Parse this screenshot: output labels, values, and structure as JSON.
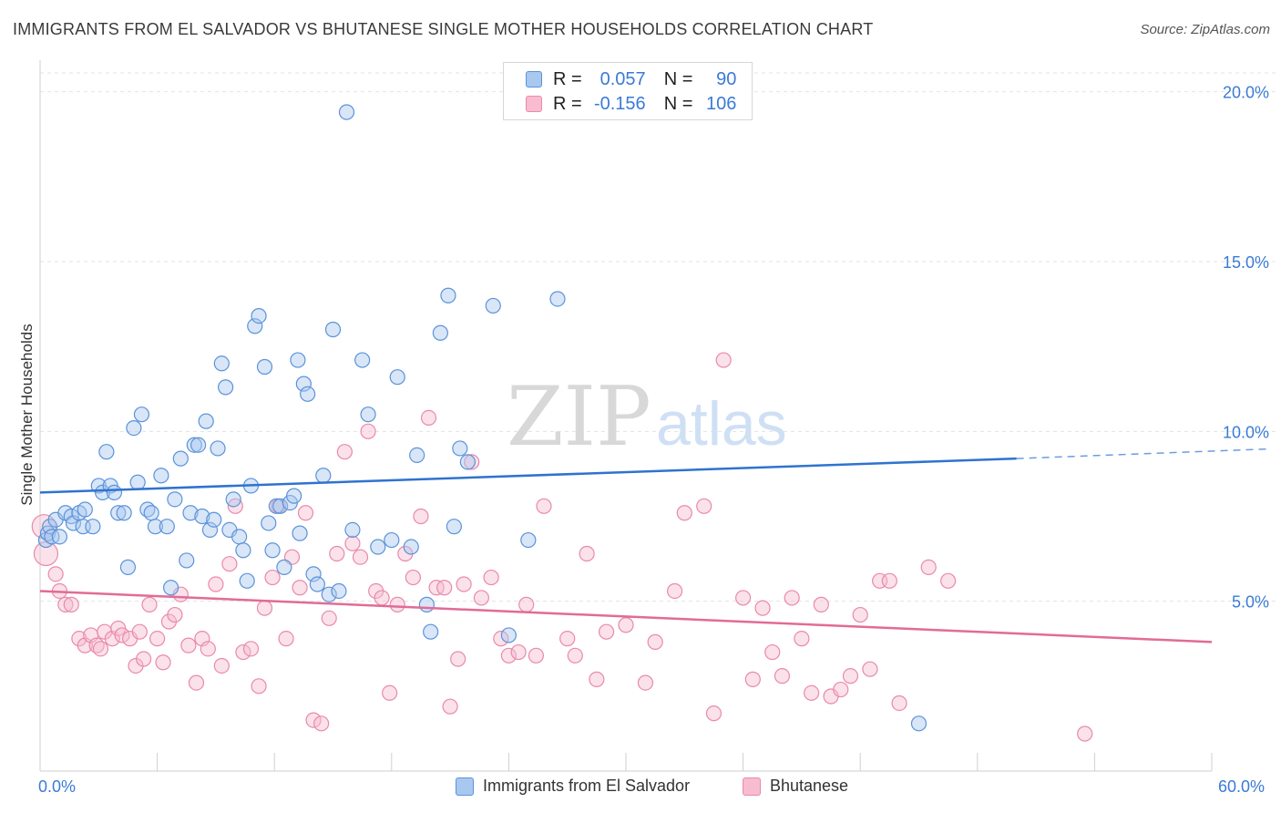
{
  "header": {
    "title": "IMMIGRANTS FROM EL SALVADOR VS BHUTANESE SINGLE MOTHER HOUSEHOLDS CORRELATION CHART",
    "source": "Source: ZipAtlas.com"
  },
  "legend_box": {
    "rows": [
      {
        "r_label": "R =",
        "r_value": "0.057",
        "n_label": "N =",
        "n_value": "90"
      },
      {
        "r_label": "R =",
        "r_value": "-0.156",
        "n_label": "N =",
        "n_value": "106"
      }
    ]
  },
  "bottom_legend": {
    "series1": "Immigrants from El Salvador",
    "series2": "Bhutanese"
  },
  "watermark": {
    "zip": "ZIP",
    "atlas": "atlas"
  },
  "colors": {
    "blue_fill": "#a9c8ef",
    "blue_stroke": "#5b93d9",
    "blue_line": "#2f73cf",
    "pink_fill": "#f7bcd0",
    "pink_stroke": "#e98aa9",
    "pink_line": "#e26b97",
    "tick_text": "#3a7bd5"
  },
  "chart_data": {
    "type": "scatter",
    "title": "IMMIGRANTS FROM EL SALVADOR VS BHUTANESE SINGLE MOTHER HOUSEHOLDS CORRELATION CHART",
    "xlabel": "",
    "ylabel": "Single Mother Households",
    "xlim": [
      0,
      60
    ],
    "ylim": [
      0,
      20.5
    ],
    "x_tick_labels": [
      "0.0%",
      "60.0%"
    ],
    "y_ticks": [
      5,
      10,
      15,
      20
    ],
    "y_tick_labels": [
      "5.0%",
      "10.0%",
      "15.0%",
      "20.0%"
    ],
    "grid": "horizontal dashed",
    "legend_position": "top-center",
    "series": [
      {
        "name": "Immigrants from El Salvador",
        "color": "#5b93d9",
        "trend": {
          "x": [
            0,
            50,
            60
          ],
          "y": [
            8.2,
            9.2,
            9.4
          ],
          "dashed_from_x": 50
        },
        "points": [
          [
            0.3,
            6.8
          ],
          [
            0.4,
            7.0
          ],
          [
            0.5,
            7.2
          ],
          [
            0.6,
            6.9
          ],
          [
            0.8,
            7.4
          ],
          [
            1.0,
            6.9
          ],
          [
            1.3,
            7.6
          ],
          [
            1.6,
            7.5
          ],
          [
            1.7,
            7.3
          ],
          [
            2.0,
            7.6
          ],
          [
            2.2,
            7.2
          ],
          [
            2.3,
            7.7
          ],
          [
            2.7,
            7.2
          ],
          [
            3.0,
            8.4
          ],
          [
            3.2,
            8.2
          ],
          [
            3.4,
            9.4
          ],
          [
            3.6,
            8.4
          ],
          [
            3.8,
            8.2
          ],
          [
            4.0,
            7.6
          ],
          [
            4.3,
            7.6
          ],
          [
            4.5,
            6.0
          ],
          [
            4.8,
            10.1
          ],
          [
            5.0,
            8.5
          ],
          [
            5.2,
            10.5
          ],
          [
            5.5,
            7.7
          ],
          [
            5.7,
            7.6
          ],
          [
            5.9,
            7.2
          ],
          [
            6.2,
            8.7
          ],
          [
            6.5,
            7.2
          ],
          [
            6.7,
            5.4
          ],
          [
            6.9,
            8.0
          ],
          [
            7.2,
            9.2
          ],
          [
            7.5,
            6.2
          ],
          [
            7.7,
            7.6
          ],
          [
            7.9,
            9.6
          ],
          [
            8.1,
            9.6
          ],
          [
            8.3,
            7.5
          ],
          [
            8.5,
            10.3
          ],
          [
            8.7,
            7.1
          ],
          [
            8.9,
            7.4
          ],
          [
            9.1,
            9.5
          ],
          [
            9.3,
            12.0
          ],
          [
            9.5,
            11.3
          ],
          [
            9.7,
            7.1
          ],
          [
            9.9,
            8.0
          ],
          [
            10.2,
            6.9
          ],
          [
            10.4,
            6.5
          ],
          [
            10.6,
            5.6
          ],
          [
            10.8,
            8.4
          ],
          [
            11.0,
            13.1
          ],
          [
            11.2,
            13.4
          ],
          [
            11.5,
            11.9
          ],
          [
            11.7,
            7.3
          ],
          [
            11.9,
            6.5
          ],
          [
            12.1,
            7.8
          ],
          [
            12.3,
            7.8
          ],
          [
            12.5,
            6.0
          ],
          [
            12.8,
            7.9
          ],
          [
            13.0,
            8.1
          ],
          [
            13.2,
            12.1
          ],
          [
            13.3,
            7.0
          ],
          [
            13.5,
            11.4
          ],
          [
            13.7,
            11.1
          ],
          [
            14.0,
            5.8
          ],
          [
            14.2,
            5.5
          ],
          [
            14.5,
            8.7
          ],
          [
            14.8,
            5.2
          ],
          [
            15.0,
            13.0
          ],
          [
            15.3,
            5.3
          ],
          [
            15.7,
            19.4
          ],
          [
            16.0,
            7.1
          ],
          [
            16.5,
            12.1
          ],
          [
            16.8,
            10.5
          ],
          [
            17.3,
            6.6
          ],
          [
            18.0,
            6.8
          ],
          [
            18.3,
            11.6
          ],
          [
            19.0,
            6.6
          ],
          [
            19.3,
            9.3
          ],
          [
            19.8,
            4.9
          ],
          [
            20.0,
            4.1
          ],
          [
            20.5,
            12.9
          ],
          [
            20.9,
            14.0
          ],
          [
            21.2,
            7.2
          ],
          [
            21.5,
            9.5
          ],
          [
            21.9,
            9.1
          ],
          [
            23.2,
            13.7
          ],
          [
            24.0,
            4.0
          ],
          [
            25.0,
            6.8
          ],
          [
            26.5,
            13.9
          ],
          [
            45.0,
            1.4
          ]
        ]
      },
      {
        "name": "Bhutanese",
        "color": "#e98aa9",
        "trend": {
          "x": [
            0,
            60
          ],
          "y": [
            5.3,
            3.8
          ]
        },
        "points": [
          [
            0.2,
            7.2
          ],
          [
            0.3,
            6.4
          ],
          [
            0.8,
            5.8
          ],
          [
            1.0,
            5.3
          ],
          [
            1.3,
            4.9
          ],
          [
            1.6,
            4.9
          ],
          [
            2.0,
            3.9
          ],
          [
            2.3,
            3.7
          ],
          [
            2.6,
            4.0
          ],
          [
            2.9,
            3.7
          ],
          [
            3.1,
            3.6
          ],
          [
            3.3,
            4.1
          ],
          [
            3.7,
            3.9
          ],
          [
            4.0,
            4.2
          ],
          [
            4.2,
            4.0
          ],
          [
            4.6,
            3.9
          ],
          [
            4.9,
            3.1
          ],
          [
            5.1,
            4.1
          ],
          [
            5.3,
            3.3
          ],
          [
            5.6,
            4.9
          ],
          [
            6.0,
            3.9
          ],
          [
            6.3,
            3.2
          ],
          [
            6.6,
            4.4
          ],
          [
            6.9,
            4.6
          ],
          [
            7.2,
            5.2
          ],
          [
            7.6,
            3.7
          ],
          [
            8.0,
            2.6
          ],
          [
            8.3,
            3.9
          ],
          [
            8.6,
            3.6
          ],
          [
            9.0,
            5.5
          ],
          [
            9.3,
            3.1
          ],
          [
            9.7,
            6.1
          ],
          [
            10.0,
            7.8
          ],
          [
            10.4,
            3.5
          ],
          [
            10.8,
            3.6
          ],
          [
            11.2,
            2.5
          ],
          [
            11.5,
            4.8
          ],
          [
            11.9,
            5.7
          ],
          [
            12.2,
            7.8
          ],
          [
            12.6,
            3.9
          ],
          [
            12.9,
            6.3
          ],
          [
            13.3,
            5.4
          ],
          [
            13.6,
            7.6
          ],
          [
            14.0,
            1.5
          ],
          [
            14.4,
            1.4
          ],
          [
            14.8,
            4.5
          ],
          [
            15.2,
            6.4
          ],
          [
            15.6,
            9.4
          ],
          [
            16.0,
            6.7
          ],
          [
            16.4,
            6.3
          ],
          [
            16.8,
            10.0
          ],
          [
            17.2,
            5.3
          ],
          [
            17.5,
            5.1
          ],
          [
            17.9,
            2.3
          ],
          [
            18.3,
            4.9
          ],
          [
            18.7,
            6.4
          ],
          [
            19.1,
            5.7
          ],
          [
            19.5,
            7.5
          ],
          [
            19.9,
            10.4
          ],
          [
            20.3,
            5.4
          ],
          [
            20.7,
            5.4
          ],
          [
            21.0,
            1.9
          ],
          [
            21.4,
            3.3
          ],
          [
            21.7,
            5.5
          ],
          [
            22.1,
            9.1
          ],
          [
            22.6,
            5.1
          ],
          [
            23.1,
            5.7
          ],
          [
            23.6,
            3.9
          ],
          [
            24.0,
            3.4
          ],
          [
            24.5,
            3.5
          ],
          [
            24.9,
            4.9
          ],
          [
            25.4,
            3.4
          ],
          [
            25.8,
            7.8
          ],
          [
            27.0,
            3.9
          ],
          [
            27.4,
            3.4
          ],
          [
            28.0,
            6.4
          ],
          [
            28.5,
            2.7
          ],
          [
            29.0,
            4.1
          ],
          [
            30.0,
            4.3
          ],
          [
            31.0,
            2.6
          ],
          [
            31.5,
            3.8
          ],
          [
            32.5,
            5.3
          ],
          [
            33.0,
            7.6
          ],
          [
            34.0,
            7.8
          ],
          [
            34.5,
            1.7
          ],
          [
            35.0,
            12.1
          ],
          [
            36.0,
            5.1
          ],
          [
            36.5,
            2.7
          ],
          [
            37.0,
            4.8
          ],
          [
            37.5,
            3.5
          ],
          [
            38.0,
            2.8
          ],
          [
            38.5,
            5.1
          ],
          [
            39.0,
            3.9
          ],
          [
            39.5,
            2.3
          ],
          [
            40.0,
            4.9
          ],
          [
            40.5,
            2.2
          ],
          [
            41.0,
            2.4
          ],
          [
            41.5,
            2.8
          ],
          [
            42.0,
            4.6
          ],
          [
            42.5,
            3.0
          ],
          [
            43.0,
            5.6
          ],
          [
            43.5,
            5.6
          ],
          [
            44.0,
            2.0
          ],
          [
            45.5,
            6.0
          ],
          [
            46.5,
            5.6
          ],
          [
            53.5,
            1.1
          ]
        ]
      }
    ]
  }
}
